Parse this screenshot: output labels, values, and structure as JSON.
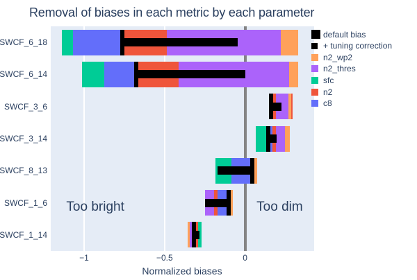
{
  "chart_data": {
    "type": "bar",
    "orientation": "horizontal-stacked",
    "title": "Removal of biases in each metric by each parameter",
    "xlabel": "Normalized biases",
    "xlim": [
      -1.207,
      0.429
    ],
    "x_ticks": [
      {
        "value": -1,
        "label": "−1"
      },
      {
        "value": -0.5,
        "label": "−0.5"
      },
      {
        "value": 0,
        "label": "0"
      }
    ],
    "categories": [
      "SWCF_6_18",
      "SWCF_6_14",
      "SWCF_3_6",
      "SWCF_3_14",
      "SWCF_8_13",
      "SWCF_1_6",
      "SWCF_1_14"
    ],
    "param_colors": {
      "c8": "#636EFA",
      "n2": "#EF553B",
      "sfc": "#00CC96",
      "n2_thres": "#AB63FA",
      "n2_wp2": "#FFA15A"
    },
    "plot_bg": "#E5ECF6",
    "zero_line_color": "#848484",
    "text_color": "#2a3f5f",
    "legend": [
      {
        "label": "default bias",
        "color": "#000000",
        "size": 13
      },
      {
        "label": "+ tuning correction",
        "color": "#000000",
        "size": 9
      },
      {
        "label": "n2_wp2",
        "color": "#FFA15A",
        "size": 10
      },
      {
        "label": "n2_thres",
        "color": "#AB63FA",
        "size": 10
      },
      {
        "label": "sfc",
        "color": "#00CC96",
        "size": 10
      },
      {
        "label": "n2",
        "color": "#EF553B",
        "size": 10
      },
      {
        "label": "c8",
        "color": "#636EFA",
        "size": 10
      }
    ],
    "annotations": [
      {
        "text": "Too bright",
        "x": -0.93
      },
      {
        "text": "Too dim",
        "x": 0.215
      }
    ],
    "rows": [
      {
        "metric": "SWCF_6_18",
        "segments": [
          {
            "param": "sfc",
            "from": -1.137,
            "to": -1.069
          },
          {
            "param": "c8",
            "from": -1.069,
            "to": -0.763
          },
          {
            "param": "n2",
            "from": -0.763,
            "to": -0.486
          },
          {
            "param": "n2_thres",
            "from": -0.486,
            "to": 0.221
          },
          {
            "param": "n2_wp2",
            "from": 0.221,
            "to": 0.329
          }
        ],
        "default_bias": -0.763,
        "correction_bar": {
          "from": -0.763,
          "to": -0.047
        }
      },
      {
        "metric": "SWCF_6_14",
        "segments": [
          {
            "param": "sfc",
            "from": -1.012,
            "to": -0.875
          },
          {
            "param": "c8",
            "from": -0.875,
            "to": -0.676
          },
          {
            "param": "n2",
            "from": -0.676,
            "to": -0.414
          },
          {
            "param": "n2_thres",
            "from": -0.414,
            "to": 0.273
          },
          {
            "param": "n2_wp2",
            "from": 0.273,
            "to": 0.329
          }
        ],
        "default_bias": -0.676,
        "correction_bar": {
          "from": -0.676,
          "to": 0.0
        }
      },
      {
        "metric": "SWCF_3_6",
        "segments": [
          {
            "param": "n2",
            "from": 0.149,
            "to": 0.19
          },
          {
            "param": "n2_thres",
            "from": 0.19,
            "to": 0.269
          },
          {
            "param": "n2_wp2",
            "from": 0.269,
            "to": 0.286
          },
          {
            "param": "n2",
            "from": 0.286,
            "to": 0.295
          }
        ],
        "default_bias": 0.163,
        "correction_bar": {
          "from": 0.149,
          "to": 0.226
        }
      },
      {
        "metric": "SWCF_3_14",
        "segments": [
          {
            "param": "sfc",
            "from": 0.067,
            "to": 0.132
          },
          {
            "param": "c8",
            "from": 0.132,
            "to": 0.168
          },
          {
            "param": "n2",
            "from": 0.168,
            "to": 0.19
          },
          {
            "param": "n2_thres",
            "from": 0.19,
            "to": 0.247
          },
          {
            "param": "n2_wp2",
            "from": 0.247,
            "to": 0.276
          }
        ],
        "default_bias": 0.143,
        "correction_bar": {
          "from": 0.132,
          "to": 0.197
        }
      },
      {
        "metric": "SWCF_8_13",
        "segments": [
          {
            "param": "sfc",
            "from": -0.184,
            "to": -0.084
          },
          {
            "param": "c8",
            "from": -0.084,
            "to": 0.046
          },
          {
            "param": "n2_wp2",
            "from": 0.046,
            "to": 0.075
          }
        ],
        "default_bias": 0.046,
        "correction_bar": {
          "from": -0.17,
          "to": 0.046
        }
      },
      {
        "metric": "SWCF_1_6",
        "segments": [
          {
            "param": "n2_thres",
            "from": -0.249,
            "to": -0.192
          },
          {
            "param": "n2",
            "from": -0.192,
            "to": -0.17
          },
          {
            "param": "c8",
            "from": -0.17,
            "to": -0.098
          },
          {
            "param": "n2_wp2",
            "from": -0.098,
            "to": -0.076
          }
        ],
        "default_bias": -0.101,
        "correction_bar": {
          "from": -0.249,
          "to": -0.101
        }
      },
      {
        "metric": "SWCF_1_14",
        "segments": [
          {
            "param": "n2_wp2",
            "from": -0.357,
            "to": -0.343
          },
          {
            "param": "n2_thres",
            "from": -0.343,
            "to": -0.32
          },
          {
            "param": "n2",
            "from": -0.32,
            "to": -0.292
          },
          {
            "param": "sfc",
            "from": -0.292,
            "to": -0.271
          }
        ],
        "default_bias": -0.317,
        "correction_bar": {
          "from": -0.328,
          "to": -0.285
        }
      }
    ]
  }
}
